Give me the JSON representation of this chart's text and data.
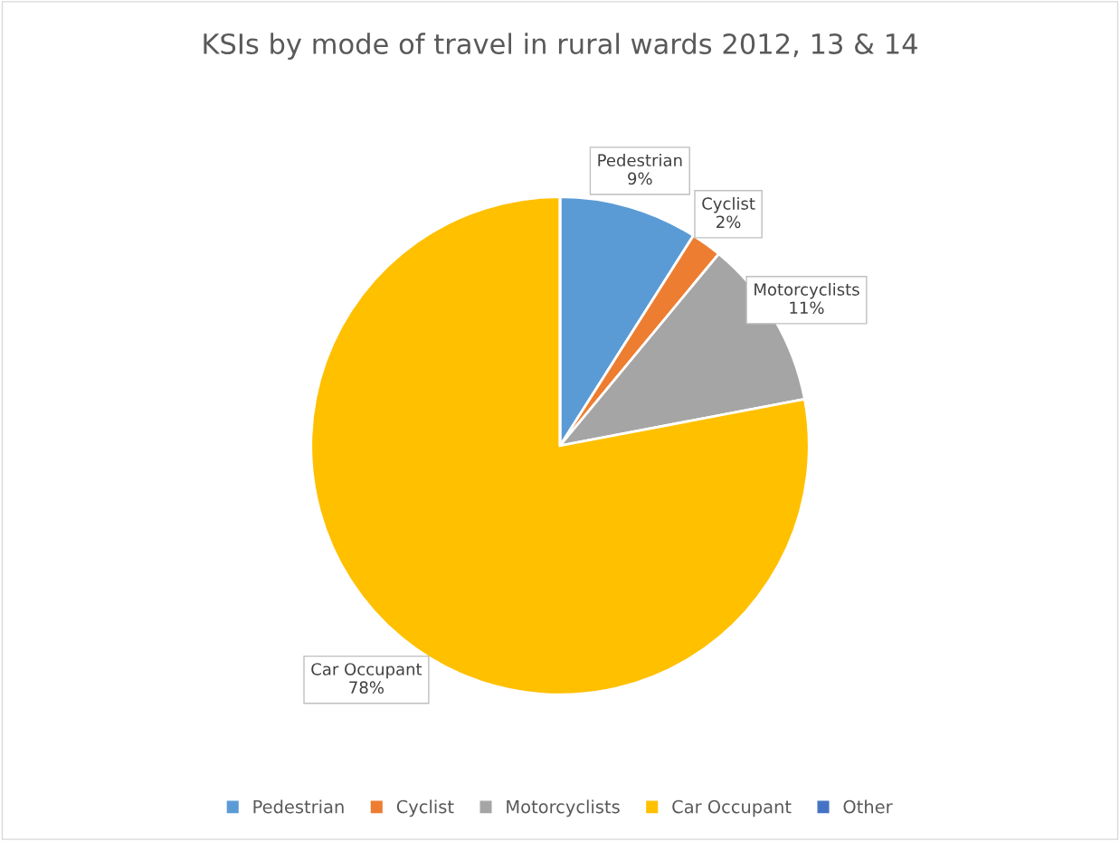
{
  "chart_data": {
    "type": "pie",
    "title": "KSIs by mode of travel in rural wards 2012, 13 & 14",
    "categories": [
      "Pedestrian",
      "Cyclist",
      "Motorcyclists",
      "Car Occupant",
      "Other"
    ],
    "values": [
      9,
      2,
      11,
      78,
      0
    ],
    "colors": [
      "#5b9bd5",
      "#ed7d31",
      "#a5a5a5",
      "#ffc000",
      "#4472c4"
    ],
    "value_labels": [
      "9%",
      "2%",
      "11%",
      "78%",
      null
    ],
    "legend": "bottom"
  }
}
